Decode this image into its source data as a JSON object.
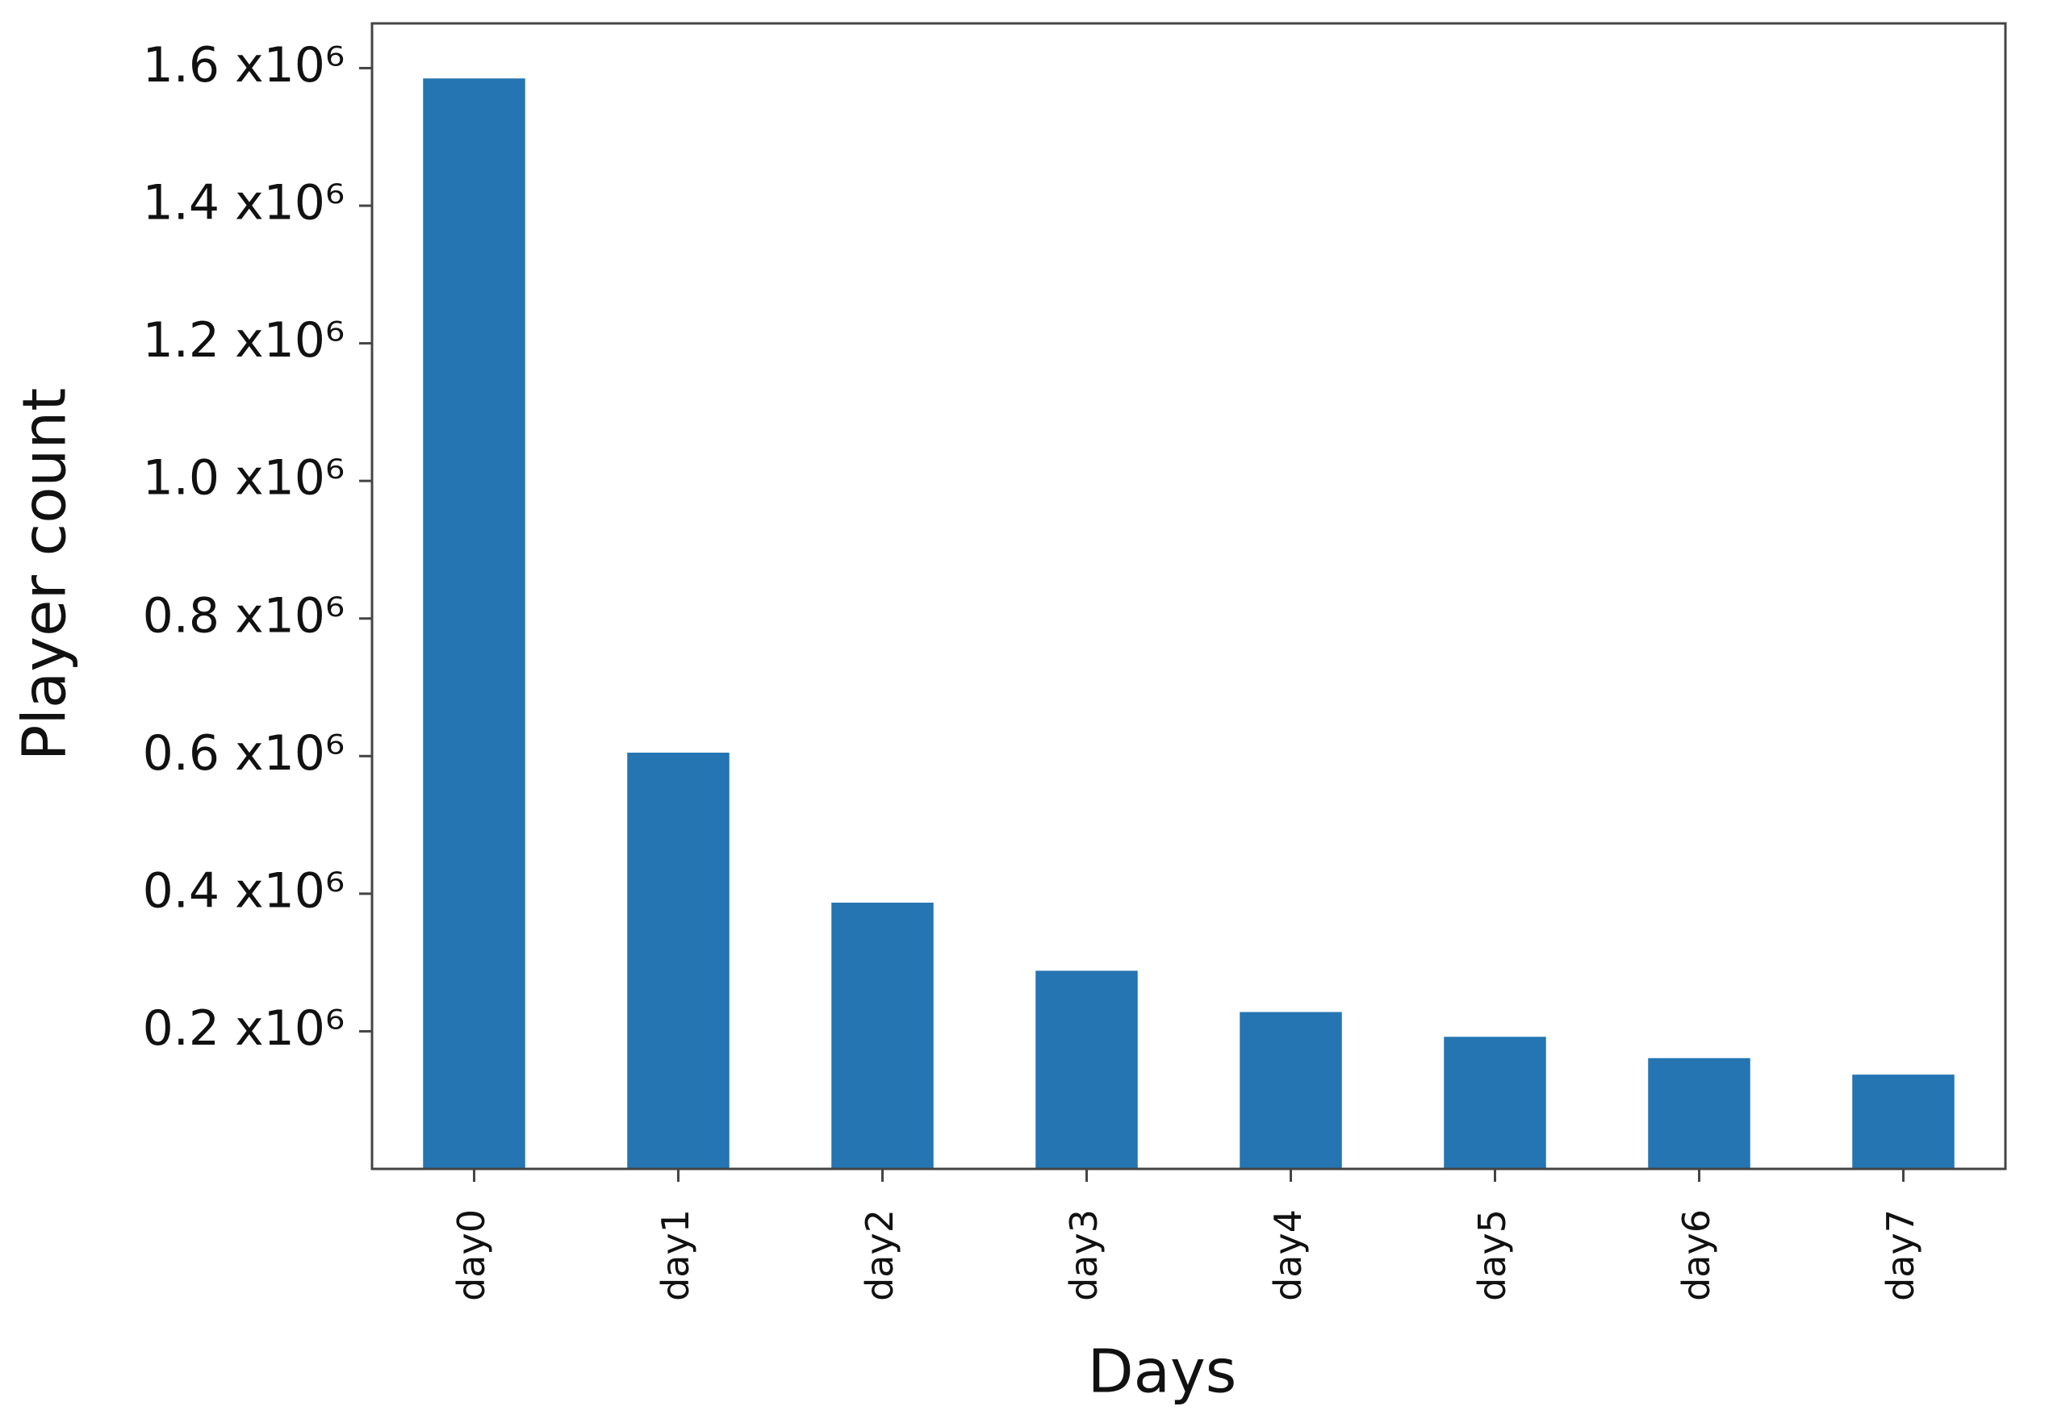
{
  "chart_data": {
    "type": "bar",
    "x_label": "Days",
    "y_label": "Player count",
    "categories": [
      "day0",
      "day1",
      "day2",
      "day3",
      "day4",
      "day5",
      "day6",
      "day7"
    ],
    "values": [
      1585000,
      605000,
      387000,
      288000,
      228000,
      192000,
      161000,
      137000
    ],
    "color": "#2475b2",
    "ylim": [
      0,
      1665000
    ],
    "yticks": [
      {
        "value": 200000,
        "label": "0.2 x10⁶"
      },
      {
        "value": 400000,
        "label": "0.4 x10⁶"
      },
      {
        "value": 600000,
        "label": "0.6 x10⁶"
      },
      {
        "value": 800000,
        "label": "0.8 x10⁶"
      },
      {
        "value": 1000000,
        "label": "1.0 x10⁶"
      },
      {
        "value": 1200000,
        "label": "1.2 x10⁶"
      },
      {
        "value": 1400000,
        "label": "1.4 x10⁶"
      },
      {
        "value": 1600000,
        "label": "1.6 x10⁶"
      }
    ],
    "grid": false
  }
}
